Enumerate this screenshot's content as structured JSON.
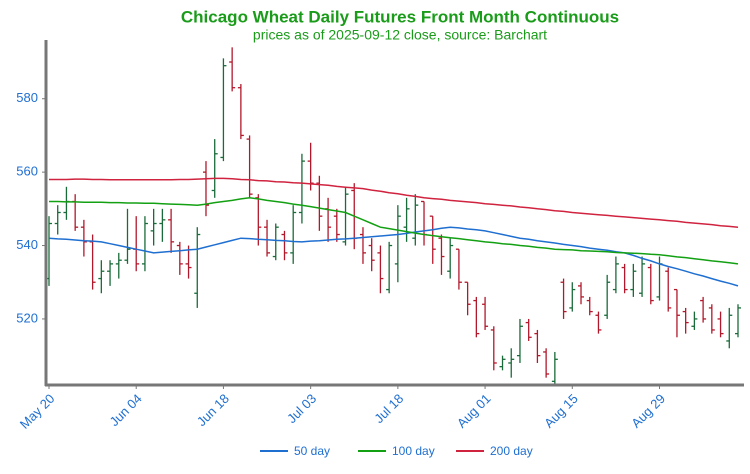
{
  "chart_data": {
    "type": "ohlc",
    "title": "Chicago Wheat Daily Futures Front Month Continuous",
    "subtitle": "prices as of 2025-09-12 close, source: Barchart",
    "title_color": "#1a9c1a",
    "up_color": "#1a6b3a",
    "down_color": "#b2182b",
    "categories": [
      "May 20",
      null,
      null,
      null,
      null,
      null,
      null,
      null,
      null,
      null,
      "Jun 04",
      null,
      null,
      null,
      null,
      null,
      null,
      null,
      null,
      null,
      "Jun 18",
      null,
      null,
      null,
      null,
      null,
      null,
      null,
      null,
      null,
      "Jul 03",
      null,
      null,
      null,
      null,
      null,
      null,
      null,
      null,
      null,
      "Jul 18",
      null,
      null,
      null,
      null,
      null,
      null,
      null,
      null,
      null,
      "Aug 01",
      null,
      null,
      null,
      null,
      null,
      null,
      null,
      null,
      null,
      "Aug 15",
      null,
      null,
      null,
      null,
      null,
      null,
      null,
      null,
      null,
      "Aug 29",
      null,
      null,
      null,
      null,
      null,
      null,
      null,
      null,
      null
    ],
    "ohlc": {
      "open": [
        531,
        546,
        549,
        552,
        545,
        541,
        531,
        533,
        535,
        536,
        539,
        535,
        544,
        546,
        547,
        540,
        535,
        527,
        560,
        555,
        564,
        590,
        583,
        569,
        553,
        545,
        537,
        543,
        538,
        549,
        563,
        557,
        550,
        548,
        541,
        555,
        543,
        540,
        538,
        528,
        535,
        545,
        542,
        552,
        548,
        542,
        533,
        539,
        530,
        525,
        524,
        517,
        507,
        508,
        510,
        519,
        516,
        511,
        503,
        530,
        523,
        529,
        525,
        521,
        521,
        528,
        534,
        528,
        527,
        534,
        526,
        533,
        528,
        522,
        518,
        525,
        523,
        520,
        514,
        516
      ],
      "high": [
        548,
        551,
        556,
        554,
        547,
        543,
        536,
        536,
        538,
        550,
        548,
        548,
        550,
        550,
        550,
        541,
        540,
        545,
        563,
        569,
        591,
        594,
        584,
        570,
        554,
        547,
        546,
        544,
        551,
        565,
        568,
        559,
        553,
        550,
        556,
        557,
        545,
        542,
        540,
        541,
        551,
        553,
        554,
        552,
        548,
        543,
        542,
        539,
        530,
        526,
        526,
        518,
        510,
        512,
        520,
        520,
        517,
        512,
        511,
        531,
        530,
        530,
        526,
        522,
        532,
        537,
        535,
        535,
        537,
        535,
        537,
        534,
        528,
        523,
        522,
        526,
        524,
        522,
        523,
        524
      ],
      "low": [
        529,
        543,
        547,
        544,
        537,
        528,
        527,
        529,
        531,
        535,
        533,
        533,
        540,
        541,
        538,
        532,
        531,
        523,
        548,
        553,
        563,
        582,
        569,
        553,
        540,
        537,
        536,
        536,
        535,
        546,
        555,
        544,
        541,
        541,
        540,
        539,
        535,
        533,
        527,
        527,
        530,
        541,
        540,
        540,
        535,
        532,
        531,
        528,
        521,
        515,
        517,
        506,
        506,
        504,
        508,
        514,
        508,
        504,
        502,
        520,
        522,
        524,
        521,
        516,
        520,
        527,
        527,
        526,
        526,
        524,
        525,
        522,
        515,
        516,
        517,
        519,
        516,
        515,
        512,
        515
      ],
      "close": [
        546,
        549,
        552,
        545,
        541,
        530,
        533,
        535,
        536,
        539,
        535,
        546,
        546,
        547,
        541,
        535,
        534,
        543,
        551,
        565,
        589,
        583,
        570,
        554,
        545,
        538,
        545,
        538,
        549,
        563,
        557,
        548,
        545,
        543,
        554,
        542,
        538,
        536,
        531,
        540,
        548,
        550,
        551,
        543,
        539,
        537,
        540,
        530,
        524,
        516,
        518,
        508,
        509,
        509,
        518,
        515,
        510,
        505,
        509,
        522,
        528,
        526,
        522,
        517,
        530,
        535,
        528,
        533,
        535,
        525,
        535,
        523,
        521,
        519,
        520,
        520,
        517,
        516,
        521,
        523
      ]
    },
    "series": [
      {
        "name": "50 day",
        "color": "#1f6fd1",
        "values": [
          542,
          541.8,
          541.7,
          541.5,
          541.3,
          541.2,
          541,
          540.5,
          540,
          539.5,
          539,
          538.5,
          538,
          538.2,
          538.4,
          538.6,
          538.8,
          539,
          539.6,
          540.2,
          540.8,
          541.4,
          542,
          541.9,
          541.7,
          541.6,
          541.4,
          541.3,
          541.1,
          541,
          541.2,
          541.3,
          541.5,
          541.7,
          541.8,
          542,
          542.2,
          542.4,
          542.6,
          542.8,
          543,
          543.3,
          543.7,
          544,
          544.3,
          544.7,
          545,
          544.8,
          544.5,
          544.3,
          544,
          543.5,
          543,
          542.5,
          542,
          541.7,
          541.3,
          541,
          540.7,
          540.3,
          540,
          539.7,
          539.3,
          539,
          538.7,
          538.3,
          538,
          537.3,
          536.5,
          535.8,
          535,
          534.3,
          533.7,
          533,
          532.3,
          531.7,
          531,
          530.3,
          529.7,
          529
        ]
      },
      {
        "name": "100 day",
        "color": "#13a013",
        "values": [
          552,
          552,
          551.9,
          551.9,
          551.8,
          551.8,
          551.8,
          551.7,
          551.7,
          551.6,
          551.6,
          551.5,
          551.5,
          551.4,
          551.3,
          551.2,
          551.1,
          551,
          551.3,
          551.7,
          552,
          552.3,
          552.7,
          553,
          552.7,
          552.3,
          552,
          551.7,
          551.3,
          551,
          550.6,
          550.2,
          549.8,
          549.4,
          549,
          548,
          547,
          546,
          545,
          544.6,
          544.2,
          543.8,
          543.4,
          543,
          542.7,
          542.4,
          542.1,
          541.9,
          541.6,
          541.3,
          541,
          540.8,
          540.5,
          540.3,
          540,
          539.8,
          539.5,
          539.3,
          539,
          538.9,
          538.8,
          538.6,
          538.5,
          538.4,
          538.3,
          538.1,
          538,
          537.9,
          537.8,
          537.6,
          537.5,
          537.2,
          536.9,
          536.7,
          536.4,
          536.1,
          535.8,
          535.6,
          535.3,
          535
        ]
      },
      {
        "name": "200 day",
        "color": "#d0233f",
        "values": [
          558,
          558,
          558,
          558.1,
          558.1,
          558,
          558,
          557.9,
          557.9,
          557.9,
          557.9,
          557.9,
          557.9,
          557.9,
          557.9,
          558,
          558,
          558.1,
          558.2,
          558.3,
          558.3,
          558.2,
          558,
          557.9,
          557.7,
          557.6,
          557.4,
          557.3,
          557.1,
          557,
          556.8,
          556.6,
          556.4,
          556.1,
          555.9,
          555.7,
          555.5,
          555.1,
          554.8,
          554.4,
          554.1,
          553.7,
          553.4,
          553,
          552.8,
          552.6,
          552.3,
          552.1,
          551.9,
          551.7,
          551.4,
          551.2,
          551,
          550.8,
          550.5,
          550.3,
          550,
          549.8,
          549.5,
          549.3,
          549,
          548.8,
          548.6,
          548.4,
          548.2,
          548,
          547.8,
          547.6,
          547.4,
          547.2,
          547,
          546.8,
          546.6,
          546.3,
          546.1,
          545.9,
          545.7,
          545.4,
          545.2,
          545
        ]
      }
    ],
    "ylim": [
      502,
      596
    ],
    "yticks": [
      520,
      540,
      560,
      580
    ],
    "grid": false
  }
}
